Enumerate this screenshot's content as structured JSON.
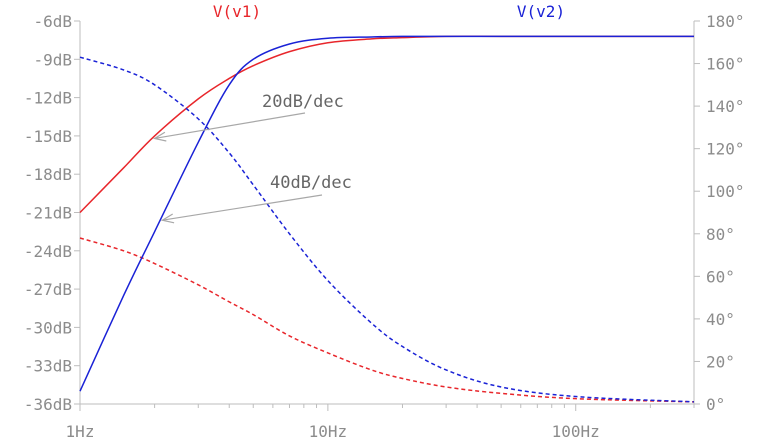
{
  "chart_data": {
    "type": "line",
    "title": "",
    "x_scale": "log",
    "xlim": [
      1,
      300
    ],
    "x_ticks": [
      1,
      10,
      100
    ],
    "x_tick_labels": [
      "1Hz",
      "10Hz",
      "100Hz"
    ],
    "y_left_lim": [
      -36,
      -6
    ],
    "y_left_ticks": [
      -6,
      -9,
      -12,
      -15,
      -18,
      -21,
      -24,
      -27,
      -30,
      -33,
      -36
    ],
    "y_left_tick_labels": [
      "-6dB",
      "-9dB",
      "-12dB",
      "-15dB",
      "-18dB",
      "-21dB",
      "-24dB",
      "-27dB",
      "-30dB",
      "-33dB",
      "-36dB"
    ],
    "y_right_lim": [
      0,
      180
    ],
    "y_right_ticks": [
      180,
      160,
      140,
      120,
      100,
      80,
      60,
      40,
      20,
      0
    ],
    "y_right_tick_labels": [
      "180°",
      "160°",
      "140°",
      "120°",
      "100°",
      "80°",
      "60°",
      "40°",
      "20°",
      "0°"
    ],
    "grid": false,
    "series": [
      {
        "name": "V(v1)",
        "color": "#e8262b",
        "magnitude_db": {
          "x": [
            1,
            1.5,
            2,
            3,
            4,
            5,
            7,
            10,
            15,
            20,
            30,
            50,
            100,
            300
          ],
          "y": [
            -21.0,
            -17.5,
            -15.0,
            -12.1,
            -10.5,
            -9.5,
            -8.4,
            -7.7,
            -7.4,
            -7.3,
            -7.2,
            -7.2,
            -7.2,
            -7.2
          ]
        },
        "phase_deg": {
          "x": [
            1,
            1.5,
            2,
            3,
            4,
            5,
            7,
            10,
            15,
            20,
            30,
            50,
            100,
            300
          ],
          "y": [
            78,
            72,
            66,
            56,
            48,
            42,
            32,
            24,
            16,
            12,
            8,
            5,
            2.5,
            1
          ]
        }
      },
      {
        "name": "V(v2)",
        "color": "#1a22d6",
        "magnitude_db": {
          "x": [
            1,
            1.5,
            2,
            3,
            4,
            5,
            7,
            10,
            15,
            20,
            30,
            50,
            100,
            300
          ],
          "y": [
            -35.0,
            -27.5,
            -22.5,
            -15.5,
            -11.0,
            -9.0,
            -7.8,
            -7.35,
            -7.25,
            -7.2,
            -7.2,
            -7.2,
            -7.2,
            -7.2
          ]
        },
        "phase_deg": {
          "x": [
            1,
            1.5,
            2,
            3,
            4,
            5,
            7,
            10,
            15,
            20,
            30,
            50,
            100,
            300
          ],
          "y": [
            163,
            157,
            150,
            134,
            118,
            103,
            80,
            58,
            38,
            27,
            16,
            8,
            3.5,
            1
          ]
        }
      }
    ],
    "annotations": [
      {
        "text": "20dB/dec",
        "arrow_to": {
          "x": 2,
          "y_db": -15.2
        }
      },
      {
        "text": "40dB/dec",
        "arrow_to": {
          "x": 2.15,
          "y_db": -21.6
        }
      }
    ]
  }
}
